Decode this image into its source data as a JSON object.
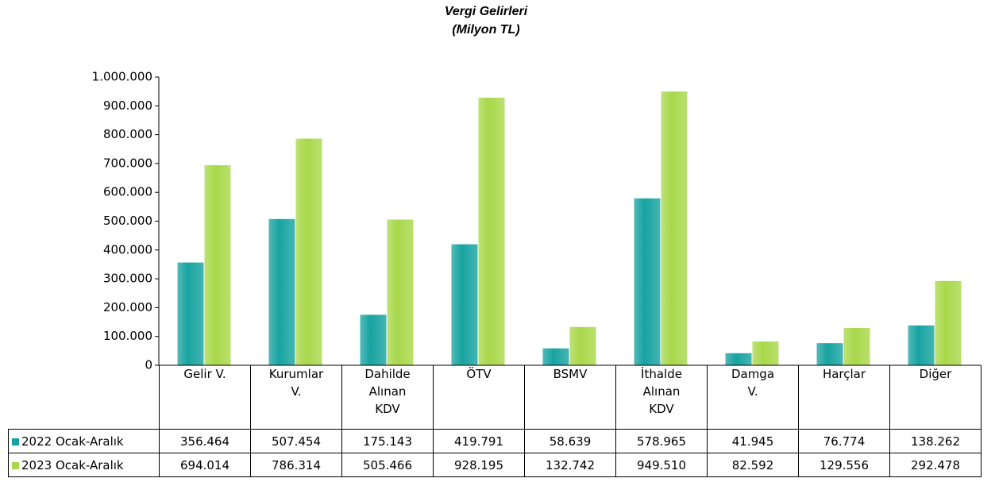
{
  "chart_data": {
    "type": "bar",
    "title": "Vergi Gelirleri",
    "subtitle": "(Milyon TL)",
    "categories": [
      "Gelir V.",
      "Kurumlar\nV.",
      "Dahilde\nAlınan\nKDV",
      "ÖTV",
      "BSMV",
      "İthalde\nAlınan\nKDV",
      "Damga\nV.",
      "Harçlar",
      "Diğer"
    ],
    "series": [
      {
        "name": "2022 Ocak-Aralık",
        "color": "#17a3a1",
        "values": [
          356464,
          507454,
          175143,
          419791,
          58639,
          578965,
          41945,
          76774,
          138262
        ],
        "value_labels": [
          "356.464",
          "507.454",
          "175.143",
          "419.791",
          "58.639",
          "578.965",
          "41.945",
          "76.774",
          "138.262"
        ]
      },
      {
        "name": "2023 Ocak-Aralık",
        "color": "#a8d84a",
        "values": [
          694014,
          786314,
          505466,
          928195,
          132742,
          949510,
          82592,
          129556,
          292478
        ],
        "value_labels": [
          "694.014",
          "786.314",
          "505.466",
          "928.195",
          "132.742",
          "949.510",
          "82.592",
          "129.556",
          "292.478"
        ]
      }
    ],
    "ylim": [
      0,
      1000000
    ],
    "yticks": [
      0,
      {
        "value": 100000,
        "label": "100.000"
      },
      {
        "value": 200000,
        "label": "200.000"
      },
      {
        "value": 300000,
        "label": "300.000"
      },
      {
        "value": 400000,
        "label": "400.000"
      },
      {
        "value": 500000,
        "label": "500.000"
      },
      {
        "value": 600000,
        "label": "600.000"
      },
      {
        "value": 700000,
        "label": "700.000"
      },
      {
        "value": 800000,
        "label": "800.000"
      },
      {
        "value": 900000,
        "label": "900.000"
      },
      {
        "value": 1000000,
        "label": "1.000.000"
      }
    ],
    "grid": false
  }
}
